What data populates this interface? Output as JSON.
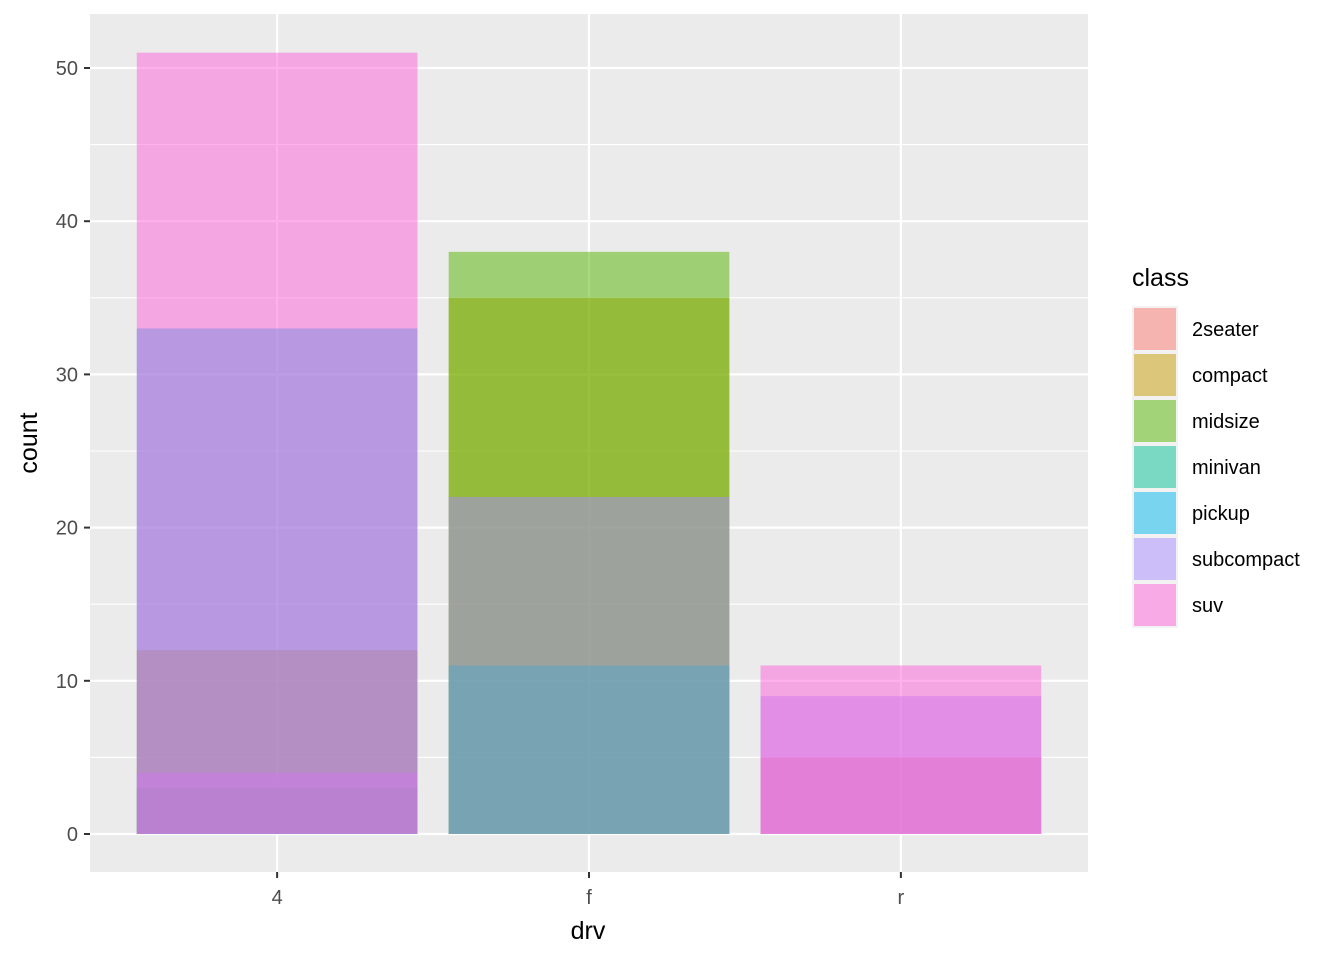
{
  "chart_data": {
    "type": "bar",
    "position": "identity",
    "bar_alpha": 0.5,
    "title": "",
    "xlabel": "drv",
    "ylabel": "count",
    "categories": [
      "4",
      "f",
      "r"
    ],
    "ylim": [
      0,
      53
    ],
    "yticks": [
      0,
      10,
      20,
      30,
      40,
      50
    ],
    "grid": true,
    "legend": {
      "title": "class",
      "placement": "right",
      "entries": [
        {
          "name": "2seater",
          "color": "#F8766D"
        },
        {
          "name": "compact",
          "color": "#C49A00"
        },
        {
          "name": "midsize",
          "color": "#53B400"
        },
        {
          "name": "minivan",
          "color": "#00C094"
        },
        {
          "name": "pickup",
          "color": "#00B6EB"
        },
        {
          "name": "subcompact",
          "color": "#A58AFF"
        },
        {
          "name": "suv",
          "color": "#FB61D7"
        }
      ]
    },
    "series": [
      {
        "name": "2seater",
        "color": "#F8766D",
        "values": [
          0,
          0,
          5
        ]
      },
      {
        "name": "compact",
        "color": "#C49A00",
        "values": [
          12,
          35,
          0
        ]
      },
      {
        "name": "midsize",
        "color": "#53B400",
        "values": [
          3,
          38,
          0
        ]
      },
      {
        "name": "minivan",
        "color": "#00C094",
        "values": [
          0,
          11,
          0
        ]
      },
      {
        "name": "pickup",
        "color": "#00B6EB",
        "values": [
          33,
          0,
          0
        ]
      },
      {
        "name": "subcompact",
        "color": "#A58AFF",
        "values": [
          4,
          22,
          9
        ]
      },
      {
        "name": "suv",
        "color": "#FB61D7",
        "values": [
          51,
          0,
          11
        ]
      }
    ]
  }
}
